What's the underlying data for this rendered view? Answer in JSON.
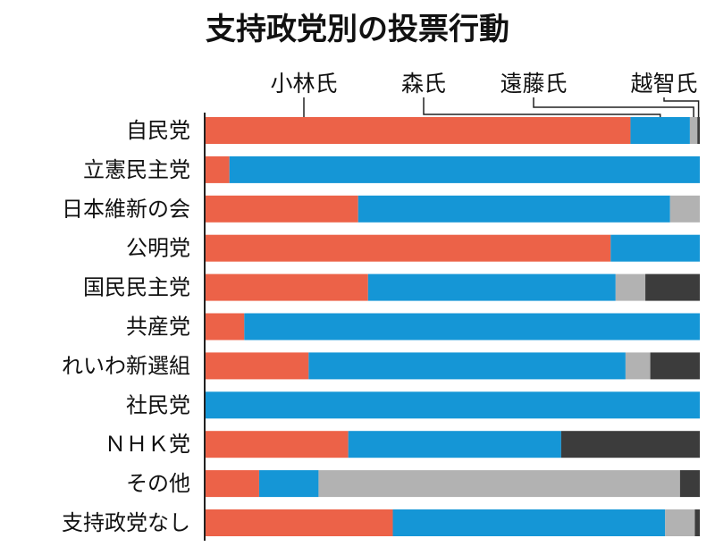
{
  "chart_data": {
    "type": "bar",
    "stacked": true,
    "orientation": "horizontal",
    "percent": true,
    "title": "支持政党別の投票行動",
    "categories": [
      "自民党",
      "立憲民主党",
      "日本維新の会",
      "公明党",
      "国民民主党",
      "共産党",
      "れいわ新選組",
      "社民党",
      "ＮＨＫ党",
      "その他",
      "支持政党なし"
    ],
    "series": [
      {
        "name": "小林氏",
        "color": "#ec6248",
        "values": [
          86,
          5,
          31,
          82,
          33,
          8,
          21,
          0,
          29,
          11,
          38
        ]
      },
      {
        "name": "森氏",
        "color": "#1596d6",
        "values": [
          12,
          95,
          63,
          18,
          50,
          92,
          64,
          100,
          43,
          12,
          55
        ]
      },
      {
        "name": "遠藤氏",
        "color": "#b2b2b2",
        "values": [
          1.5,
          0,
          6,
          0,
          6,
          0,
          5,
          0,
          0,
          73,
          6
        ]
      },
      {
        "name": "越智氏",
        "color": "#3c3c3c",
        "values": [
          0.5,
          0,
          0,
          0,
          11,
          0,
          10,
          0,
          28,
          4,
          1
        ]
      }
    ],
    "xlim": [
      0,
      100
    ],
    "grid": false,
    "legend": "top"
  }
}
